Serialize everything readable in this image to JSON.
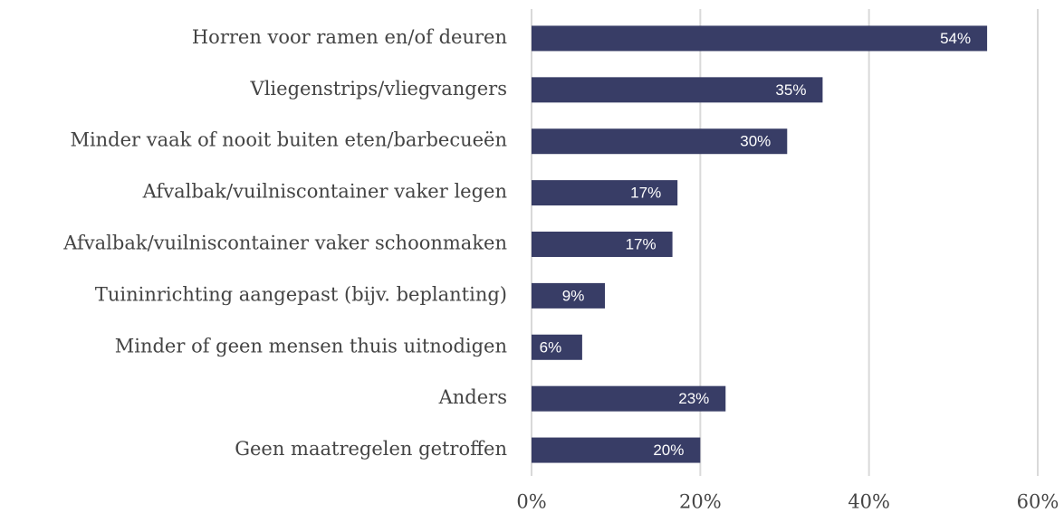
{
  "chart_data": {
    "type": "barh",
    "categories": [
      "Horren voor ramen en/of deuren",
      "Vliegenstrips/vliegvangers",
      "Minder vaak of nooit buiten eten/barbecueën",
      "Afvalbak/vuilniscontainer vaker legen",
      "Afvalbak/vuilniscontainer vaker schoonmaken",
      "Tuininrichting aangepast (bijv. beplanting)",
      "Minder of geen mensen thuis uitnodigen",
      "Anders",
      "Geen maatregelen getroffen"
    ],
    "values": [
      54,
      34.5,
      30.3,
      17.3,
      16.7,
      8.7,
      6,
      23,
      20
    ],
    "value_labels": [
      "54%",
      "35%",
      "30%",
      "17%",
      "17%",
      "9%",
      "6%",
      "23%",
      "20%"
    ],
    "color": "#383d66",
    "xlim": [
      0,
      60
    ],
    "xticks": [
      {
        "value": 0,
        "label": "0%"
      },
      {
        "value": 20,
        "label": "20%"
      },
      {
        "value": 40,
        "label": "40%"
      },
      {
        "value": 60,
        "label": "60%"
      }
    ],
    "grid": true
  }
}
